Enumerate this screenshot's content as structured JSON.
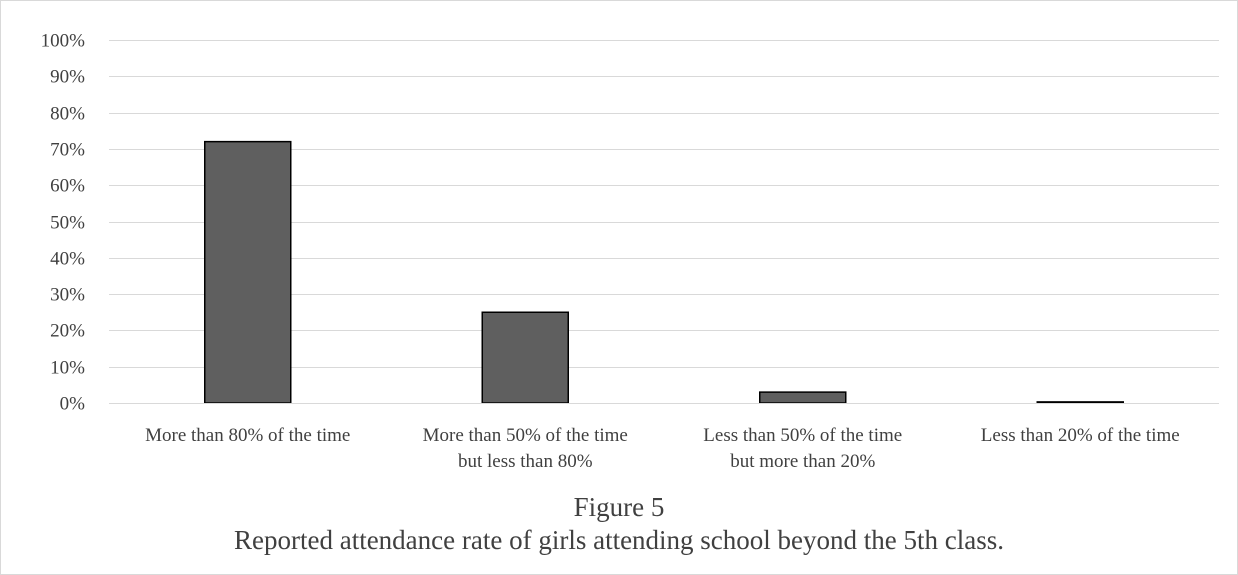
{
  "figure": {
    "number_label": "Figure 5",
    "caption": "Reported attendance rate of girls attending school beyond the 5th class."
  },
  "colors": {
    "bar_fill": "#5f5f5f",
    "bar_stroke": "#000000",
    "gridline": "#d9d9d9",
    "axis_text": "#404040"
  },
  "chart_data": {
    "type": "bar",
    "title": "",
    "xlabel": "",
    "ylabel": "",
    "categories": [
      [
        "More than 80% of the time"
      ],
      [
        "More than 50% of the time",
        "but less than 80%"
      ],
      [
        "Less than 50% of the time",
        "but more than 20%"
      ],
      [
        "Less than 20% of the time"
      ]
    ],
    "values": [
      72,
      25,
      3,
      0.3
    ],
    "ylim": [
      0,
      100
    ],
    "yticks": [
      0,
      10,
      20,
      30,
      40,
      50,
      60,
      70,
      80,
      90,
      100
    ],
    "ytick_labels": [
      "0%",
      "10%",
      "20%",
      "30%",
      "40%",
      "50%",
      "60%",
      "70%",
      "80%",
      "90%",
      "100%"
    ],
    "grid": true,
    "legend": "none"
  }
}
